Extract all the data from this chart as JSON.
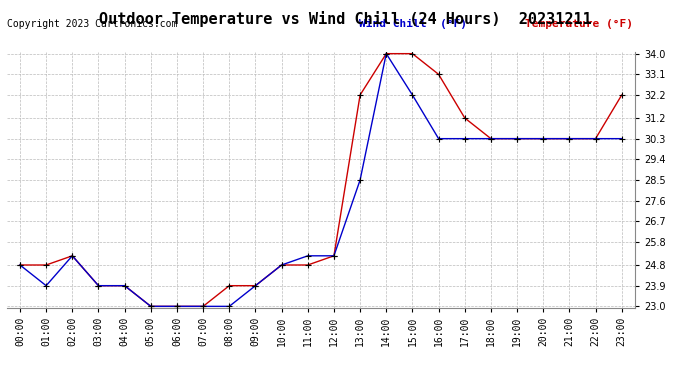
{
  "title": "Outdoor Temperature vs Wind Chill (24 Hours)  20231211",
  "copyright": "Copyright 2023 Cartronics.com",
  "legend_wind_chill": "Wind Chill  (°F)",
  "legend_temp": "Temperature (°F)",
  "hours": [
    0,
    1,
    2,
    3,
    4,
    5,
    6,
    7,
    8,
    9,
    10,
    11,
    12,
    13,
    14,
    15,
    16,
    17,
    18,
    19,
    20,
    21,
    22,
    23
  ],
  "hour_labels": [
    "00:00",
    "01:00",
    "02:00",
    "03:00",
    "04:00",
    "05:00",
    "06:00",
    "07:00",
    "08:00",
    "09:00",
    "10:00",
    "11:00",
    "12:00",
    "13:00",
    "14:00",
    "15:00",
    "16:00",
    "17:00",
    "18:00",
    "19:00",
    "20:00",
    "21:00",
    "22:00",
    "23:00"
  ],
  "temperature": [
    24.8,
    24.8,
    25.2,
    23.9,
    23.9,
    23.0,
    23.0,
    23.0,
    23.9,
    23.9,
    24.8,
    24.8,
    25.2,
    32.2,
    34.0,
    34.0,
    33.1,
    31.2,
    30.3,
    30.3,
    30.3,
    30.3,
    30.3,
    32.2
  ],
  "wind_chill": [
    24.8,
    23.9,
    25.2,
    23.9,
    23.9,
    23.0,
    23.0,
    23.0,
    23.0,
    23.9,
    24.8,
    25.2,
    25.2,
    28.5,
    34.0,
    32.2,
    30.3,
    30.3,
    30.3,
    30.3,
    30.3,
    30.3,
    30.3,
    30.3
  ],
  "temp_color": "#cc0000",
  "wind_chill_color": "#0000cc",
  "marker_color": "#000000",
  "ylim_min": 23.0,
  "ylim_max": 34.0,
  "yticks": [
    23.0,
    23.9,
    24.8,
    25.8,
    26.7,
    27.6,
    28.5,
    29.4,
    30.3,
    31.2,
    32.2,
    33.1,
    34.0
  ],
  "background_color": "#ffffff",
  "grid_color": "#bbbbbb",
  "title_fontsize": 11,
  "tick_fontsize": 7,
  "copyright_fontsize": 7,
  "legend_fontsize": 8
}
